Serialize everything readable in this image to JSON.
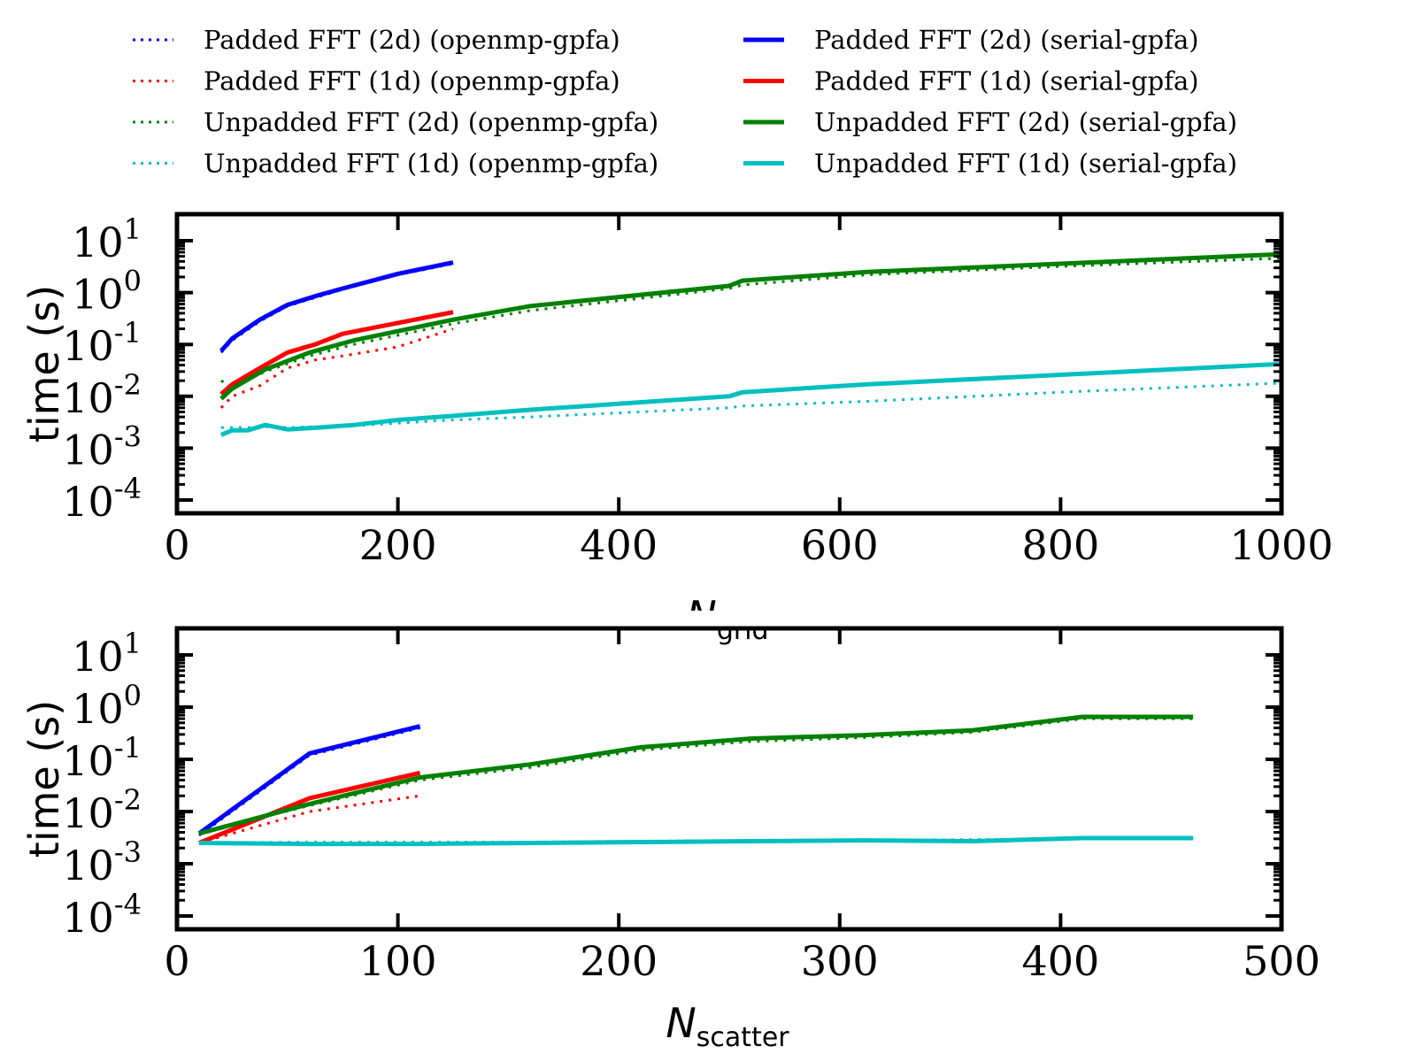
{
  "legend": {
    "placement": "top",
    "entries": [
      {
        "label": "Padded FFT (2d) (openmp-gpfa)",
        "color": "#0000ff",
        "style": "dotted"
      },
      {
        "label": "Padded FFT (1d) (openmp-gpfa)",
        "color": "#ff0000",
        "style": "dotted"
      },
      {
        "label": "Unpadded FFT (2d) (openmp-gpfa)",
        "color": "#008000",
        "style": "dotted"
      },
      {
        "label": "Unpadded FFT (1d) (openmp-gpfa)",
        "color": "#00bfbf",
        "style": "dotted"
      },
      {
        "label": "Padded FFT (2d) (serial-gpfa)",
        "color": "#0000ff",
        "style": "solid"
      },
      {
        "label": "Padded FFT (1d) (serial-gpfa)",
        "color": "#ff0000",
        "style": "solid"
      },
      {
        "label": "Unpadded FFT (2d) (serial-gpfa)",
        "color": "#008000",
        "style": "solid"
      },
      {
        "label": "Unpadded FFT (1d) (serial-gpfa)",
        "color": "#00bfbf",
        "style": "solid"
      }
    ]
  },
  "chart_data": [
    {
      "type": "line",
      "ylabel": "time (s)",
      "xlabel_main": "N",
      "xlabel_sub": "grid",
      "xlim": [
        0,
        1000
      ],
      "ylim": [
        0.0001,
        10
      ],
      "yscale": "log",
      "xticks": [
        "0",
        "200",
        "400",
        "600",
        "800",
        "1000"
      ],
      "yticks": [
        {
          "base": "10",
          "exp": "1"
        },
        {
          "base": "10",
          "exp": "0"
        },
        {
          "base": "10",
          "exp": "-1"
        },
        {
          "base": "10",
          "exp": "-2"
        },
        {
          "base": "10",
          "exp": "-3"
        },
        {
          "base": "10",
          "exp": "-4"
        }
      ],
      "series": [
        {
          "name": "Padded FFT (2d) (openmp-gpfa)",
          "color": "#0000ff",
          "style": "dotted",
          "x": [
            40,
            50,
            75,
            100,
            125,
            150,
            200,
            250
          ],
          "y": [
            0.07,
            0.12,
            0.28,
            0.55,
            0.8,
            1.15,
            2.2,
            3.6
          ]
        },
        {
          "name": "Padded FFT (1d) (openmp-gpfa)",
          "color": "#ff0000",
          "style": "dotted",
          "x": [
            40,
            50,
            75,
            100,
            125,
            150,
            200,
            250
          ],
          "y": [
            0.006,
            0.01,
            0.016,
            0.035,
            0.05,
            0.06,
            0.09,
            0.2
          ]
        },
        {
          "name": "Unpadded FFT (2d) (openmp-gpfa)",
          "color": "#008000",
          "style": "dotted",
          "x": [
            40,
            50,
            80,
            120,
            160,
            250,
            320,
            500,
            512,
            625,
            800,
            1000
          ],
          "y": [
            0.02,
            0.015,
            0.03,
            0.06,
            0.1,
            0.25,
            0.45,
            1.2,
            1.4,
            2.2,
            3.2,
            4.6
          ]
        },
        {
          "name": "Unpadded FFT (1d) (openmp-gpfa)",
          "color": "#00bfbf",
          "style": "dotted",
          "x": [
            40,
            50,
            64,
            80,
            100,
            128,
            160,
            250,
            320,
            500,
            512,
            625,
            800,
            1000
          ],
          "y": [
            0.0025,
            0.0025,
            0.0025,
            0.0026,
            0.0025,
            0.0026,
            0.0027,
            0.0035,
            0.004,
            0.006,
            0.0065,
            0.008,
            0.012,
            0.018
          ]
        },
        {
          "name": "Padded FFT (2d) (serial-gpfa)",
          "color": "#0000ff",
          "style": "solid",
          "x": [
            40,
            50,
            75,
            100,
            125,
            150,
            200,
            250
          ],
          "y": [
            0.075,
            0.13,
            0.3,
            0.58,
            0.85,
            1.2,
            2.3,
            3.8
          ]
        },
        {
          "name": "Padded FFT (1d) (serial-gpfa)",
          "color": "#ff0000",
          "style": "solid",
          "x": [
            40,
            50,
            75,
            100,
            125,
            150,
            200,
            250
          ],
          "y": [
            0.011,
            0.017,
            0.035,
            0.07,
            0.1,
            0.16,
            0.26,
            0.42
          ]
        },
        {
          "name": "Unpadded FFT (2d) (serial-gpfa)",
          "color": "#008000",
          "style": "solid",
          "x": [
            40,
            50,
            80,
            120,
            160,
            250,
            320,
            500,
            512,
            625,
            800,
            1000
          ],
          "y": [
            0.009,
            0.014,
            0.033,
            0.07,
            0.12,
            0.3,
            0.55,
            1.35,
            1.7,
            2.5,
            3.6,
            5.5
          ]
        },
        {
          "name": "Unpadded FFT (1d) (serial-gpfa)",
          "color": "#00bfbf",
          "style": "solid",
          "x": [
            40,
            50,
            64,
            80,
            100,
            128,
            160,
            200,
            250,
            320,
            500,
            512,
            625,
            800,
            1000
          ],
          "y": [
            0.0018,
            0.0022,
            0.0022,
            0.0028,
            0.0023,
            0.0025,
            0.0028,
            0.0035,
            0.0042,
            0.0055,
            0.01,
            0.012,
            0.017,
            0.026,
            0.042
          ]
        }
      ]
    },
    {
      "type": "line",
      "ylabel": "time (s)",
      "xlabel_main": "N",
      "xlabel_sub": "scatter",
      "xlim": [
        0,
        500
      ],
      "ylim": [
        0.0001,
        10
      ],
      "yscale": "log",
      "xticks": [
        "0",
        "100",
        "200",
        "300",
        "400",
        "500"
      ],
      "yticks": [
        {
          "base": "10",
          "exp": "1"
        },
        {
          "base": "10",
          "exp": "0"
        },
        {
          "base": "10",
          "exp": "-1"
        },
        {
          "base": "10",
          "exp": "-2"
        },
        {
          "base": "10",
          "exp": "-3"
        },
        {
          "base": "10",
          "exp": "-4"
        }
      ],
      "series": [
        {
          "name": "Padded FFT (2d) (openmp-gpfa)",
          "color": "#0000ff",
          "style": "dotted",
          "x": [
            10,
            60,
            110
          ],
          "y": [
            0.0035,
            0.12,
            0.4
          ]
        },
        {
          "name": "Padded FFT (1d) (openmp-gpfa)",
          "color": "#ff0000",
          "style": "dotted",
          "x": [
            10,
            60,
            110
          ],
          "y": [
            0.0025,
            0.01,
            0.02
          ]
        },
        {
          "name": "Unpadded FFT (2d) (openmp-gpfa)",
          "color": "#008000",
          "style": "dotted",
          "x": [
            10,
            60,
            110,
            160,
            210,
            260,
            310,
            360,
            410,
            460
          ],
          "y": [
            0.004,
            0.013,
            0.04,
            0.07,
            0.15,
            0.22,
            0.26,
            0.33,
            0.6,
            0.6
          ]
        },
        {
          "name": "Unpadded FFT (1d) (openmp-gpfa)",
          "color": "#00bfbf",
          "style": "dotted",
          "x": [
            10,
            60,
            110,
            160,
            210,
            260,
            310,
            360,
            410,
            460
          ],
          "y": [
            0.0025,
            0.0026,
            0.0026,
            0.0026,
            0.0027,
            0.0028,
            0.0028,
            0.0029,
            0.003,
            0.0031
          ]
        },
        {
          "name": "Padded FFT (2d) (serial-gpfa)",
          "color": "#0000ff",
          "style": "solid",
          "x": [
            10,
            60,
            110
          ],
          "y": [
            0.0038,
            0.13,
            0.43
          ]
        },
        {
          "name": "Padded FFT (1d) (serial-gpfa)",
          "color": "#ff0000",
          "style": "solid",
          "x": [
            10,
            60,
            110
          ],
          "y": [
            0.0025,
            0.018,
            0.055
          ]
        },
        {
          "name": "Unpadded FFT (2d) (serial-gpfa)",
          "color": "#008000",
          "style": "solid",
          "x": [
            10,
            60,
            110,
            160,
            210,
            260,
            310,
            360,
            410,
            460
          ],
          "y": [
            0.0038,
            0.014,
            0.045,
            0.08,
            0.17,
            0.25,
            0.29,
            0.36,
            0.65,
            0.65
          ]
        },
        {
          "name": "Unpadded FFT (1d) (serial-gpfa)",
          "color": "#00bfbf",
          "style": "solid",
          "x": [
            10,
            60,
            110,
            160,
            210,
            260,
            310,
            360,
            410,
            460
          ],
          "y": [
            0.0025,
            0.0024,
            0.0024,
            0.0025,
            0.0026,
            0.0027,
            0.0028,
            0.0027,
            0.0031,
            0.0031
          ]
        }
      ]
    }
  ]
}
